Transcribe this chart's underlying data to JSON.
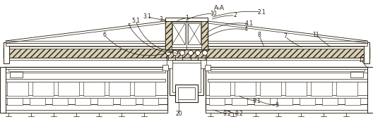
{
  "bg_color": "#ffffff",
  "line_color": "#2a2010",
  "fig_width": 5.28,
  "fig_height": 1.93,
  "dpi": 100,
  "title": "A-A",
  "labels": [
    [
      "A-A",
      310,
      12
    ],
    [
      "1",
      268,
      25
    ],
    [
      "2",
      333,
      22
    ],
    [
      "2.1",
      366,
      18
    ],
    [
      "3",
      228,
      28
    ],
    [
      "3.1",
      210,
      24
    ],
    [
      "4",
      348,
      43
    ],
    [
      "4.1",
      352,
      35
    ],
    [
      "5",
      185,
      38
    ],
    [
      "5.1",
      193,
      30
    ],
    [
      "6",
      150,
      52
    ],
    [
      "7",
      402,
      52
    ],
    [
      "8",
      365,
      50
    ],
    [
      "9",
      390,
      150
    ],
    [
      "9.1",
      362,
      143
    ],
    [
      "9.2",
      322,
      163
    ],
    [
      "8.2",
      337,
      163
    ],
    [
      "10",
      302,
      20
    ],
    [
      "11",
      445,
      50
    ],
    [
      "12",
      510,
      88
    ],
    [
      "20",
      255,
      163
    ]
  ]
}
